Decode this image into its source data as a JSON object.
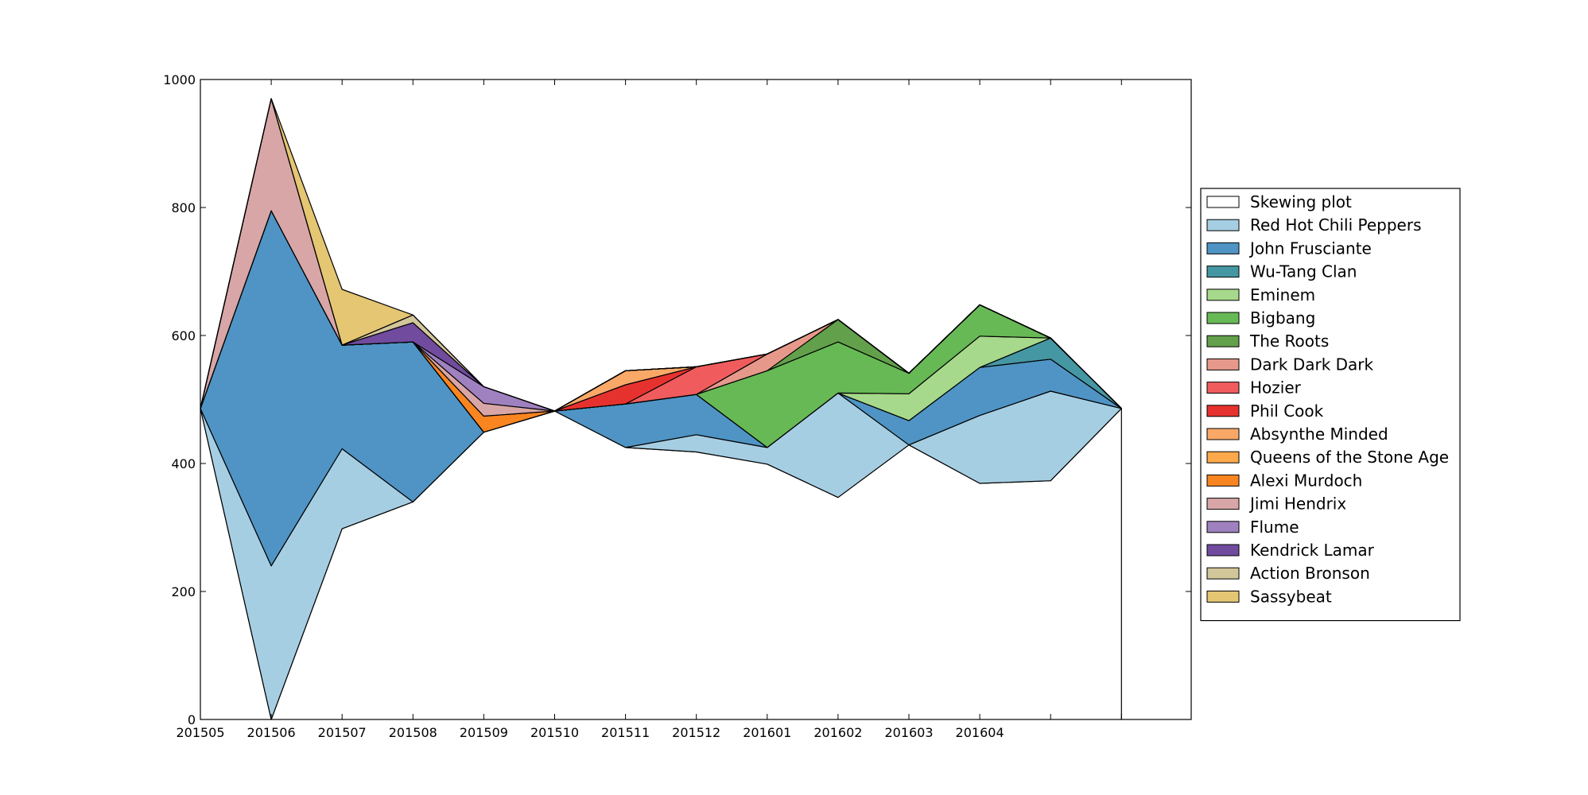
{
  "chart_data": {
    "type": "area",
    "title": "",
    "xlabel": "",
    "ylabel": "",
    "ylim": [
      0,
      1000
    ],
    "yticks": [
      0,
      200,
      400,
      600,
      800,
      1000
    ],
    "x_tick_labels": [
      "201505",
      "201506",
      "201507",
      "201508",
      "201509",
      "201510",
      "201511",
      "201512",
      "201601",
      "201602",
      "201603",
      "201604",
      "",
      ""
    ],
    "legend_position": "right",
    "baseline": [
      486,
      0,
      298,
      340,
      449,
      482,
      425,
      418,
      399,
      347,
      429,
      369,
      373,
      486
    ],
    "series": [
      {
        "name": "Skewing plot",
        "color": "#ffffff",
        "values": [
          0,
          0,
          0,
          0,
          0,
          0,
          0,
          0,
          0,
          0,
          0,
          0,
          0,
          0
        ]
      },
      {
        "name": "Red Hot Chili Peppers",
        "color": "#a6cee3",
        "values": [
          0,
          240,
          125,
          0,
          0,
          0,
          0,
          27,
          26,
          163,
          0,
          106,
          140,
          0
        ]
      },
      {
        "name": "John Frusciante",
        "color": "#4f94c4",
        "values": [
          0,
          555,
          162,
          250,
          0,
          0,
          68,
          63,
          0,
          0,
          38,
          75,
          50,
          0
        ]
      },
      {
        "name": "Wu-Tang Clan",
        "color": "#4597a3",
        "values": [
          0,
          0,
          0,
          0,
          0,
          0,
          0,
          0,
          0,
          0,
          0,
          0,
          33,
          0
        ]
      },
      {
        "name": "Eminem",
        "color": "#a6d98b",
        "values": [
          0,
          0,
          0,
          0,
          0,
          0,
          0,
          0,
          0,
          0,
          42,
          49,
          0,
          0
        ]
      },
      {
        "name": "Bigbang",
        "color": "#67b955",
        "values": [
          0,
          0,
          0,
          0,
          0,
          0,
          0,
          0,
          120,
          80,
          32,
          49,
          0,
          0
        ]
      },
      {
        "name": "The Roots",
        "color": "#63a04b",
        "values": [
          0,
          0,
          0,
          0,
          0,
          0,
          0,
          0,
          0,
          35,
          0,
          0,
          0,
          0
        ]
      },
      {
        "name": "Dark Dark Dark",
        "color": "#e6998a",
        "values": [
          0,
          0,
          0,
          0,
          0,
          0,
          0,
          0,
          26,
          0,
          0,
          0,
          0,
          0
        ]
      },
      {
        "name": "Hozier",
        "color": "#f05c5d",
        "values": [
          0,
          0,
          0,
          0,
          0,
          0,
          0,
          43,
          0,
          0,
          0,
          0,
          0,
          0
        ]
      },
      {
        "name": "Phil Cook",
        "color": "#e6322e",
        "values": [
          0,
          0,
          0,
          0,
          0,
          0,
          30,
          0,
          0,
          0,
          0,
          0,
          0,
          0
        ]
      },
      {
        "name": "Absynthe Minded",
        "color": "#f9a868",
        "values": [
          0,
          0,
          0,
          0,
          0,
          0,
          22,
          0,
          0,
          0,
          0,
          0,
          0,
          0
        ]
      },
      {
        "name": "Queens of the Stone Age",
        "color": "#fca94c",
        "values": [
          0,
          0,
          0,
          0,
          0,
          0,
          0,
          0,
          0,
          0,
          0,
          0,
          0,
          0
        ]
      },
      {
        "name": "Alexi Murdoch",
        "color": "#f98521",
        "values": [
          0,
          0,
          0,
          0,
          25,
          0,
          0,
          0,
          0,
          0,
          0,
          0,
          0,
          0
        ]
      },
      {
        "name": "Jimi Hendrix",
        "color": "#d8a6a6",
        "values": [
          0,
          175,
          0,
          0,
          20,
          0,
          0,
          0,
          0,
          0,
          0,
          0,
          0,
          0
        ]
      },
      {
        "name": "Flume",
        "color": "#a081c0",
        "values": [
          0,
          0,
          0,
          0,
          26,
          0,
          0,
          0,
          0,
          0,
          0,
          0,
          0,
          0
        ]
      },
      {
        "name": "Kendrick Lamar",
        "color": "#704b9e",
        "values": [
          0,
          0,
          0,
          30,
          0,
          0,
          0,
          0,
          0,
          0,
          0,
          0,
          0,
          0
        ]
      },
      {
        "name": "Action Bronson",
        "color": "#d2c79b",
        "values": [
          0,
          0,
          0,
          12,
          0,
          0,
          0,
          0,
          0,
          0,
          0,
          0,
          0,
          0
        ]
      },
      {
        "name": "Sassybeat",
        "color": "#e4c673",
        "values": [
          0,
          0,
          87,
          0,
          0,
          0,
          0,
          0,
          0,
          0,
          0,
          0,
          0,
          0
        ]
      }
    ]
  }
}
